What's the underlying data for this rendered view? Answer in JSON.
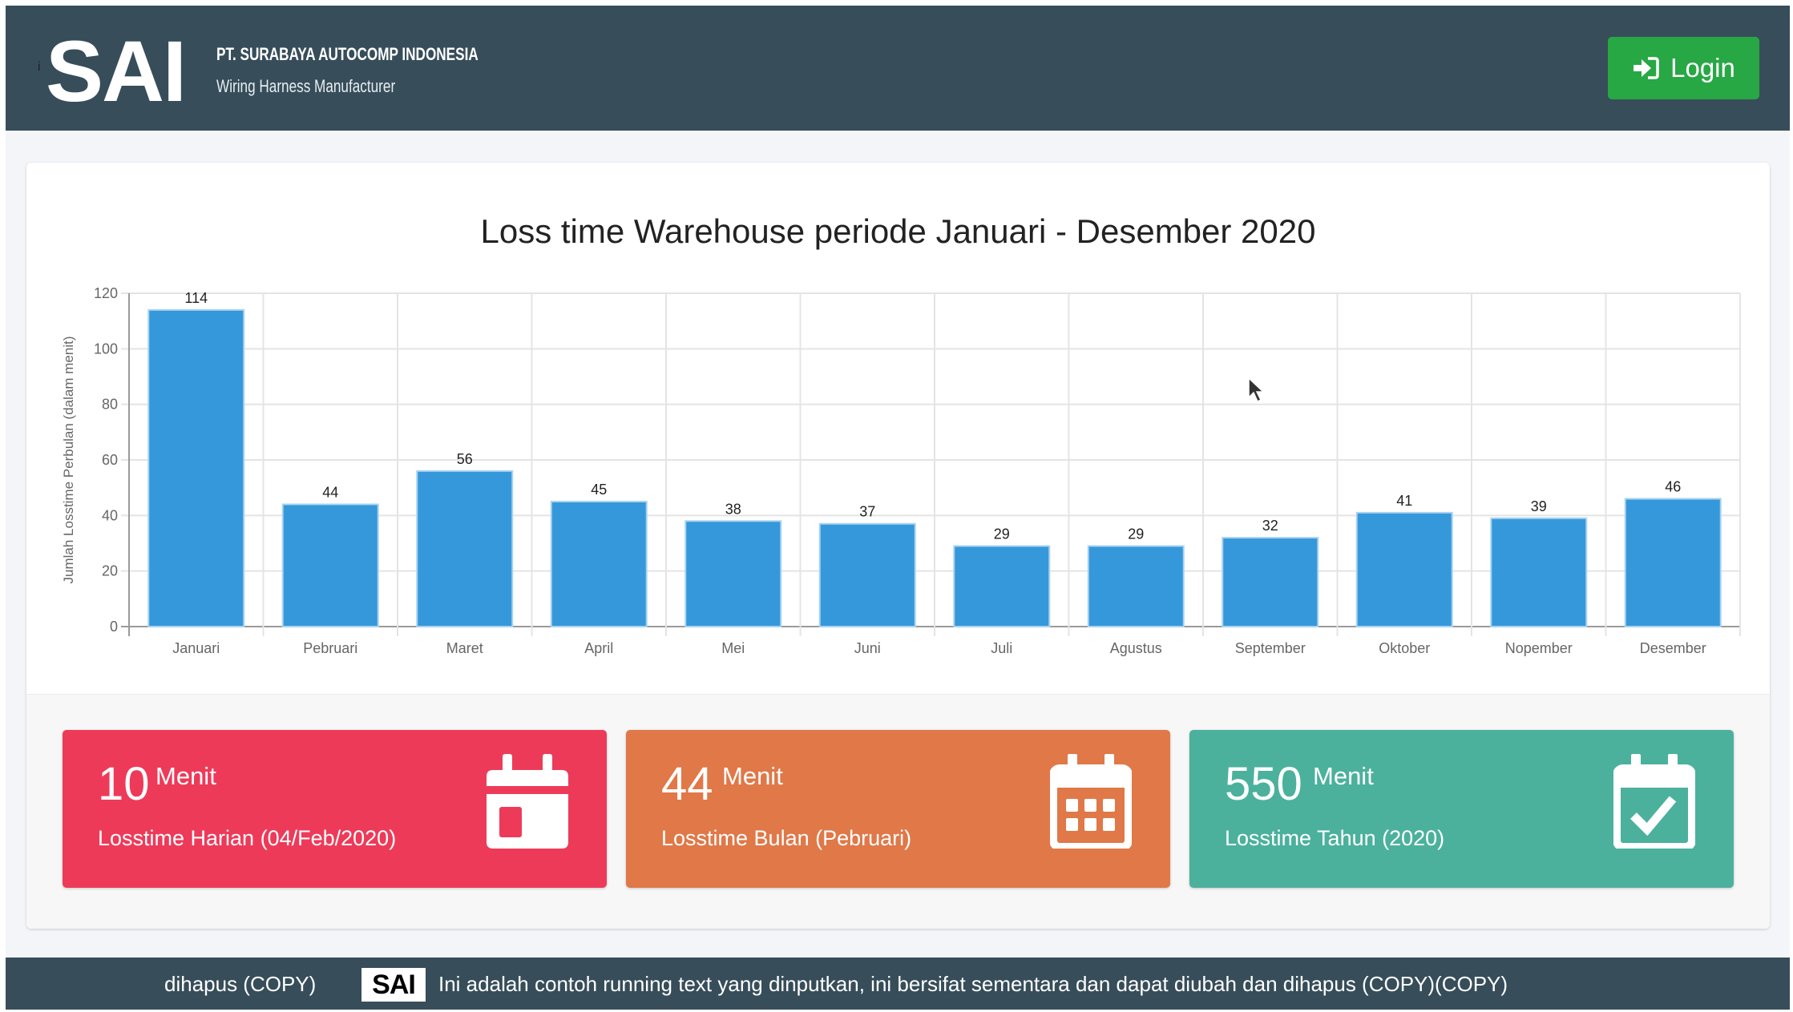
{
  "header": {
    "logo_text": "SAI",
    "logo_mark": "i",
    "company": "PT. SURABAYA AUTOCOMP INDONESIA",
    "tagline": "Wiring Harness Manufacturer",
    "login_label": "Login",
    "login_icon": "sign-in-icon"
  },
  "chart": {
    "title": "Loss time Warehouse periode Januari - Desember 2020"
  },
  "chart_data": {
    "type": "bar",
    "title": "Loss time Warehouse periode Januari - Desember 2020",
    "xlabel": "",
    "ylabel": "Jumlah Losstime Perbulan (dalam menit)",
    "categories": [
      "Januari",
      "Pebruari",
      "Maret",
      "April",
      "Mei",
      "Juni",
      "Juli",
      "Agustus",
      "September",
      "Oktober",
      "Nopember",
      "Desember"
    ],
    "values": [
      114,
      44,
      56,
      45,
      38,
      37,
      29,
      29,
      32,
      41,
      39,
      46
    ],
    "ylim": [
      0,
      120
    ],
    "yticks": [
      0,
      20,
      40,
      60,
      80,
      100,
      120
    ],
    "grid": true,
    "legend": null,
    "bar_color": "#3598db",
    "data_labels": true
  },
  "stats": [
    {
      "value": "10",
      "unit": "Menit",
      "label": "Losstime Harian (04/Feb/2020)",
      "icon": "calendar-day-icon",
      "color": "#ee3a59"
    },
    {
      "value": "44",
      "unit": "Menit",
      "label": "Losstime Bulan (Pebruari)",
      "icon": "calendar-month-icon",
      "color": "#e07848"
    },
    {
      "value": "550",
      "unit": "Menit",
      "label": "Losstime Tahun (2020)",
      "icon": "calendar-check-icon",
      "color": "#4bb19c"
    }
  ],
  "footer": {
    "left_text": "dihapus (COPY)",
    "logo_text": "SAI",
    "running_text": "Ini adalah contoh running text yang dinputkan, ini bersifat sementara dan dapat diubah dan dihapus (COPY)(COPY)"
  }
}
